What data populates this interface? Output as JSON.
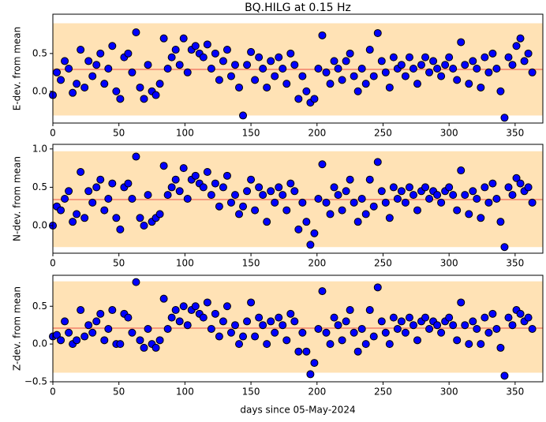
{
  "chart_data": [
    {
      "type": "scatter",
      "title": "BQ.HILG at 0.15 Hz",
      "ylabel": "E-dev. from mean",
      "x": [
        0,
        3,
        6,
        9,
        12,
        15,
        18,
        21,
        24,
        27,
        30,
        33,
        36,
        39,
        42,
        45,
        48,
        51,
        54,
        57,
        60,
        63,
        66,
        69,
        72,
        75,
        78,
        81,
        84,
        87,
        90,
        93,
        96,
        99,
        102,
        105,
        108,
        111,
        114,
        117,
        120,
        123,
        126,
        129,
        132,
        135,
        138,
        141,
        144,
        147,
        150,
        153,
        156,
        159,
        162,
        165,
        168,
        171,
        174,
        177,
        180,
        183,
        186,
        189,
        192,
        195,
        198,
        201,
        204,
        207,
        210,
        213,
        216,
        219,
        222,
        225,
        228,
        231,
        234,
        237,
        240,
        243,
        246,
        249,
        252,
        255,
        258,
        261,
        264,
        267,
        270,
        273,
        276,
        279,
        282,
        285,
        288,
        291,
        294,
        297,
        300,
        303,
        306,
        309,
        312,
        315,
        318,
        321,
        324,
        327,
        330,
        333,
        336,
        339,
        342,
        345,
        348,
        351,
        354,
        357,
        360,
        363
      ],
      "values": [
        -0.05,
        0.25,
        0.15,
        0.4,
        0.3,
        -0.02,
        0.1,
        0.55,
        0.05,
        0.4,
        0.2,
        0.35,
        0.5,
        0.1,
        0.3,
        0.6,
        0.0,
        -0.1,
        0.45,
        0.5,
        0.25,
        0.78,
        0.05,
        -0.1,
        0.35,
        0.0,
        -0.05,
        0.1,
        0.7,
        0.3,
        0.45,
        0.55,
        0.35,
        0.7,
        0.25,
        0.55,
        0.6,
        0.5,
        0.45,
        0.62,
        0.3,
        0.5,
        0.15,
        0.4,
        0.55,
        0.2,
        0.35,
        0.05,
        -0.32,
        0.35,
        0.52,
        0.15,
        0.45,
        0.3,
        0.05,
        0.4,
        0.2,
        0.45,
        0.3,
        0.1,
        0.5,
        0.35,
        -0.1,
        0.2,
        0.0,
        -0.15,
        -0.1,
        0.3,
        0.74,
        0.25,
        0.1,
        0.4,
        0.3,
        0.15,
        0.4,
        0.5,
        0.2,
        0.0,
        0.3,
        0.1,
        0.55,
        0.2,
        0.77,
        0.4,
        0.25,
        0.05,
        0.45,
        0.3,
        0.35,
        0.2,
        0.45,
        0.3,
        0.1,
        0.35,
        0.45,
        0.25,
        0.4,
        0.3,
        0.2,
        0.35,
        0.45,
        0.3,
        0.15,
        0.65,
        0.35,
        0.1,
        0.4,
        0.3,
        0.05,
        0.45,
        0.25,
        0.5,
        0.3,
        0.0,
        -0.35,
        0.45,
        0.35,
        0.6,
        0.7,
        0.4,
        0.5,
        0.25
      ],
      "color": "#0000ff",
      "edgecolor": "#000000",
      "mean": 0.29,
      "mean_color": "#f4806a",
      "band": [
        -0.32,
        0.9
      ],
      "band_color": "#ffe2b5",
      "xlim": [
        0,
        371
      ],
      "ylim": [
        -0.42,
        1.02
      ],
      "xticks": [
        0,
        50,
        100,
        150,
        200,
        250,
        300,
        350
      ],
      "yticks": [
        {
          "value": 0,
          "label": "0.0"
        },
        0.5
      ]
    },
    {
      "type": "scatter",
      "ylabel": "N-dev. from mean",
      "x": [
        0,
        3,
        6,
        9,
        12,
        15,
        18,
        21,
        24,
        27,
        30,
        33,
        36,
        39,
        42,
        45,
        48,
        51,
        54,
        57,
        60,
        63,
        66,
        69,
        72,
        75,
        78,
        81,
        84,
        87,
        90,
        93,
        96,
        99,
        102,
        105,
        108,
        111,
        114,
        117,
        120,
        123,
        126,
        129,
        132,
        135,
        138,
        141,
        144,
        147,
        150,
        153,
        156,
        159,
        162,
        165,
        168,
        171,
        174,
        177,
        180,
        183,
        186,
        189,
        192,
        195,
        198,
        201,
        204,
        207,
        210,
        213,
        216,
        219,
        222,
        225,
        228,
        231,
        234,
        237,
        240,
        243,
        246,
        249,
        252,
        255,
        258,
        261,
        264,
        267,
        270,
        273,
        276,
        279,
        282,
        285,
        288,
        291,
        294,
        297,
        300,
        303,
        306,
        309,
        312,
        315,
        318,
        321,
        324,
        327,
        330,
        333,
        336,
        339,
        342,
        345,
        348,
        351,
        354,
        357,
        360,
        363
      ],
      "values": [
        0.0,
        0.25,
        0.2,
        0.35,
        0.45,
        0.05,
        0.15,
        0.7,
        0.1,
        0.45,
        0.3,
        0.5,
        0.6,
        0.2,
        0.35,
        0.55,
        0.1,
        -0.05,
        0.5,
        0.55,
        0.35,
        0.9,
        0.1,
        0.0,
        0.4,
        0.05,
        0.1,
        0.15,
        0.78,
        0.4,
        0.5,
        0.6,
        0.45,
        0.75,
        0.35,
        0.6,
        0.65,
        0.55,
        0.5,
        0.7,
        0.4,
        0.55,
        0.25,
        0.5,
        0.65,
        0.3,
        0.4,
        0.15,
        0.25,
        0.45,
        0.6,
        0.2,
        0.5,
        0.4,
        0.05,
        0.45,
        0.3,
        0.5,
        0.4,
        0.2,
        0.55,
        0.45,
        -0.05,
        0.3,
        0.05,
        -0.25,
        -0.1,
        0.35,
        0.8,
        0.3,
        0.15,
        0.5,
        0.4,
        0.2,
        0.45,
        0.6,
        0.3,
        0.05,
        0.35,
        0.15,
        0.6,
        0.25,
        0.83,
        0.45,
        0.3,
        0.1,
        0.5,
        0.35,
        0.45,
        0.3,
        0.5,
        0.4,
        0.2,
        0.45,
        0.5,
        0.35,
        0.45,
        0.4,
        0.3,
        0.45,
        0.5,
        0.4,
        0.2,
        0.72,
        0.4,
        0.15,
        0.45,
        0.35,
        0.1,
        0.5,
        0.3,
        0.55,
        0.35,
        0.05,
        -0.28,
        0.5,
        0.4,
        0.62,
        0.55,
        0.45,
        0.5,
        0.3
      ],
      "color": "#0000ff",
      "edgecolor": "#000000",
      "mean": 0.34,
      "mean_color": "#f4806a",
      "band": [
        -0.28,
        0.97
      ],
      "band_color": "#ffe2b5",
      "xlim": [
        0,
        371
      ],
      "ylim": [
        -0.36,
        1.06
      ],
      "xticks": [
        0,
        50,
        100,
        150,
        200,
        250,
        300,
        350
      ],
      "yticks": [
        {
          "value": 0,
          "label": "0.0"
        },
        0.5,
        {
          "value": 1,
          "label": "1.0"
        }
      ]
    },
    {
      "type": "scatter",
      "ylabel": "Z-dev. from mean",
      "xlabel": "days since 05-May-2024",
      "x": [
        0,
        3,
        6,
        9,
        12,
        15,
        18,
        21,
        24,
        27,
        30,
        33,
        36,
        39,
        42,
        45,
        48,
        51,
        54,
        57,
        60,
        63,
        66,
        69,
        72,
        75,
        78,
        81,
        84,
        87,
        90,
        93,
        96,
        99,
        102,
        105,
        108,
        111,
        114,
        117,
        120,
        123,
        126,
        129,
        132,
        135,
        138,
        141,
        144,
        147,
        150,
        153,
        156,
        159,
        162,
        165,
        168,
        171,
        174,
        177,
        180,
        183,
        186,
        189,
        192,
        195,
        198,
        201,
        204,
        207,
        210,
        213,
        216,
        219,
        222,
        225,
        228,
        231,
        234,
        237,
        240,
        243,
        246,
        249,
        252,
        255,
        258,
        261,
        264,
        267,
        270,
        273,
        276,
        279,
        282,
        285,
        288,
        291,
        294,
        297,
        300,
        303,
        306,
        309,
        312,
        315,
        318,
        321,
        324,
        327,
        330,
        333,
        336,
        339,
        342,
        345,
        348,
        351,
        354,
        357,
        360,
        363
      ],
      "values": [
        0.1,
        0.12,
        0.05,
        0.3,
        0.15,
        0.0,
        0.05,
        0.45,
        0.1,
        0.25,
        0.15,
        0.3,
        0.4,
        0.05,
        0.2,
        0.45,
        0.0,
        0.0,
        0.4,
        0.35,
        0.15,
        0.82,
        0.05,
        -0.05,
        0.2,
        0.0,
        -0.05,
        0.05,
        0.6,
        0.2,
        0.35,
        0.45,
        0.3,
        0.5,
        0.25,
        0.45,
        0.5,
        0.4,
        0.35,
        0.55,
        0.2,
        0.4,
        0.1,
        0.3,
        0.5,
        0.15,
        0.25,
        0.0,
        0.1,
        0.3,
        0.55,
        0.1,
        0.35,
        0.25,
        0.0,
        0.3,
        0.15,
        0.35,
        0.25,
        0.05,
        0.4,
        0.3,
        -0.1,
        0.15,
        -0.1,
        -0.4,
        -0.25,
        0.2,
        0.7,
        0.15,
        0.0,
        0.35,
        0.25,
        0.05,
        0.3,
        0.45,
        0.15,
        -0.1,
        0.2,
        0.0,
        0.45,
        0.1,
        0.75,
        0.3,
        0.15,
        0.0,
        0.35,
        0.2,
        0.3,
        0.15,
        0.35,
        0.25,
        0.05,
        0.3,
        0.35,
        0.2,
        0.3,
        0.25,
        0.15,
        0.3,
        0.35,
        0.25,
        0.05,
        0.55,
        0.25,
        0.0,
        0.3,
        0.2,
        0.0,
        0.35,
        0.15,
        0.4,
        0.2,
        -0.05,
        -0.42,
        0.35,
        0.25,
        0.45,
        0.4,
        0.3,
        0.35,
        0.2
      ],
      "color": "#0000ff",
      "edgecolor": "#000000",
      "mean": 0.21,
      "mean_color": "#f4806a",
      "band": [
        -0.38,
        0.83
      ],
      "band_color": "#ffe2b5",
      "xlim": [
        0,
        371
      ],
      "ylim": [
        -0.5,
        0.91
      ],
      "xticks": [
        0,
        50,
        100,
        150,
        200,
        250,
        300,
        350
      ],
      "yticks": [
        {
          "value": -0.5,
          "label": "−0.5"
        },
        {
          "value": 0,
          "label": "0.0"
        },
        0.5
      ]
    }
  ]
}
